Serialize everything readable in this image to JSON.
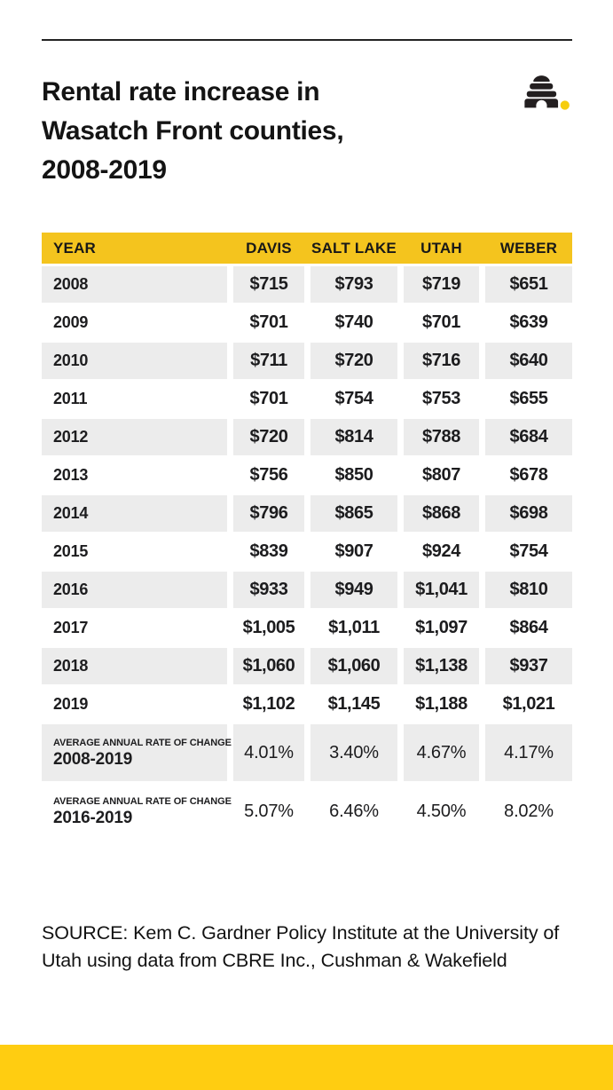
{
  "header": {
    "title_lines": [
      "Rental rate increase in",
      "Wasatch Front counties,",
      "2008-2019"
    ],
    "logo": {
      "name": "beehive-logo",
      "hive_color": "#231f20",
      "dot_color": "#f6cd0e"
    }
  },
  "chart_data": {
    "type": "table",
    "title": "Rental rate increase in Wasatch Front counties, 2008-2019",
    "columns": [
      "YEAR",
      "DAVIS",
      "SALT LAKE",
      "UTAH",
      "WEBER"
    ],
    "rows": [
      {
        "label": "2008",
        "values": [
          "$715",
          "$793",
          "$719",
          "$651"
        ]
      },
      {
        "label": "2009",
        "values": [
          "$701",
          "$740",
          "$701",
          "$639"
        ]
      },
      {
        "label": "2010",
        "values": [
          "$711",
          "$720",
          "$716",
          "$640"
        ]
      },
      {
        "label": "2011",
        "values": [
          "$701",
          "$754",
          "$753",
          "$655"
        ]
      },
      {
        "label": "2012",
        "values": [
          "$720",
          "$814",
          "$788",
          "$684"
        ]
      },
      {
        "label": "2013",
        "values": [
          "$756",
          "$850",
          "$807",
          "$678"
        ]
      },
      {
        "label": "2014",
        "values": [
          "$796",
          "$865",
          "$868",
          "$698"
        ]
      },
      {
        "label": "2015",
        "values": [
          "$839",
          "$907",
          "$924",
          "$754"
        ]
      },
      {
        "label": "2016",
        "values": [
          "$933",
          "$949",
          "$1,041",
          "$810"
        ]
      },
      {
        "label": "2017",
        "values": [
          "$1,005",
          "$1,011",
          "$1,097",
          "$864"
        ]
      },
      {
        "label": "2018",
        "values": [
          "$1,060",
          "$1,060",
          "$1,138",
          "$937"
        ]
      },
      {
        "label": "2019",
        "values": [
          "$1,102",
          "$1,145",
          "$1,188",
          "$1,021"
        ]
      }
    ],
    "summary_rows": [
      {
        "label_small": "AVERAGE ANNUAL RATE OF CHANGE",
        "label_bold": "2008-2019",
        "values": [
          "4.01%",
          "3.40%",
          "4.67%",
          "4.17%"
        ]
      },
      {
        "label_small": "AVERAGE ANNUAL RATE OF CHANGE",
        "label_bold": "2016-2019",
        "values": [
          "5.07%",
          "6.46%",
          "4.50%",
          "8.02%"
        ]
      }
    ],
    "layout": {
      "striped": true,
      "stripe_color": "#ECECEC",
      "header_color": "#F4C41E"
    }
  },
  "source": {
    "text": "SOURCE: Kem C. Gardner Policy Institute at the University of Utah using data from CBRE Inc., Cushman & Wakefield"
  },
  "colors": {
    "header_yellow": "#F4C41E",
    "footer_yellow": "#FFCD11",
    "row_gray": "#ECECEC",
    "rule_dark": "#232323",
    "text_dark": "#1d1d1f"
  }
}
